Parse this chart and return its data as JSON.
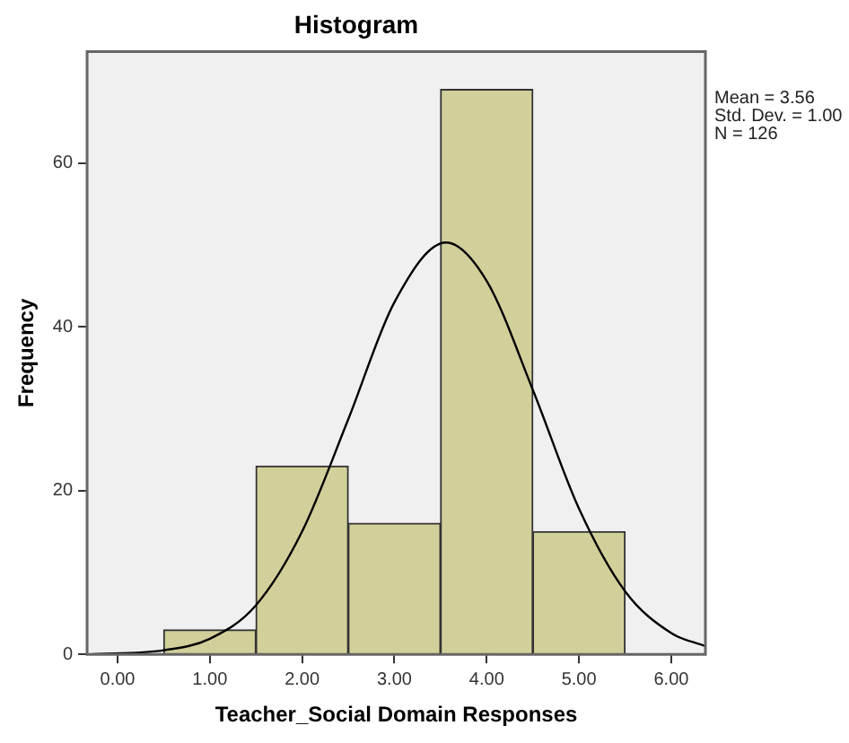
{
  "chart_data": {
    "type": "histogram",
    "title": "Histogram",
    "xlabel": "Teacher_Social Domain Responses",
    "ylabel": "Frequency",
    "bins": [
      0.5,
      1.5,
      2.5,
      3.5,
      4.5,
      5.5
    ],
    "series": [
      {
        "color": "#d2d09a",
        "values": [
          3,
          23,
          16,
          69,
          15
        ]
      },
      {
        "type": "line",
        "color": "#000000",
        "x": [
          -0.3,
          0.5,
          1.0,
          1.5,
          2.0,
          2.5,
          3.0,
          3.56,
          4.0,
          4.5,
          5.0,
          5.5,
          6.0,
          6.37
        ],
        "values": [
          0,
          0.5,
          1.9,
          6,
          15,
          28.7,
          43,
          50.3,
          45.6,
          32.3,
          17.8,
          7.7,
          2.6,
          1
        ]
      }
    ],
    "xlim": [
      -0.33,
      6.37
    ],
    "ylim": [
      0,
      73.6
    ],
    "xticks": [
      {
        "value": 0,
        "label": "0.00"
      },
      {
        "value": 1,
        "label": "1.00"
      },
      {
        "value": 2,
        "label": "2.00"
      },
      {
        "value": 3,
        "label": "3.00"
      },
      {
        "value": 4,
        "label": "4.00"
      },
      {
        "value": 5,
        "label": "5.00"
      },
      {
        "value": 6,
        "label": "6.00"
      }
    ],
    "yticks": [
      0,
      20,
      40,
      60
    ],
    "grid": false,
    "legend": false,
    "annotations": [
      "Mean = 3.56",
      "Std. Dev. = 1.00",
      "N = 126"
    ]
  }
}
